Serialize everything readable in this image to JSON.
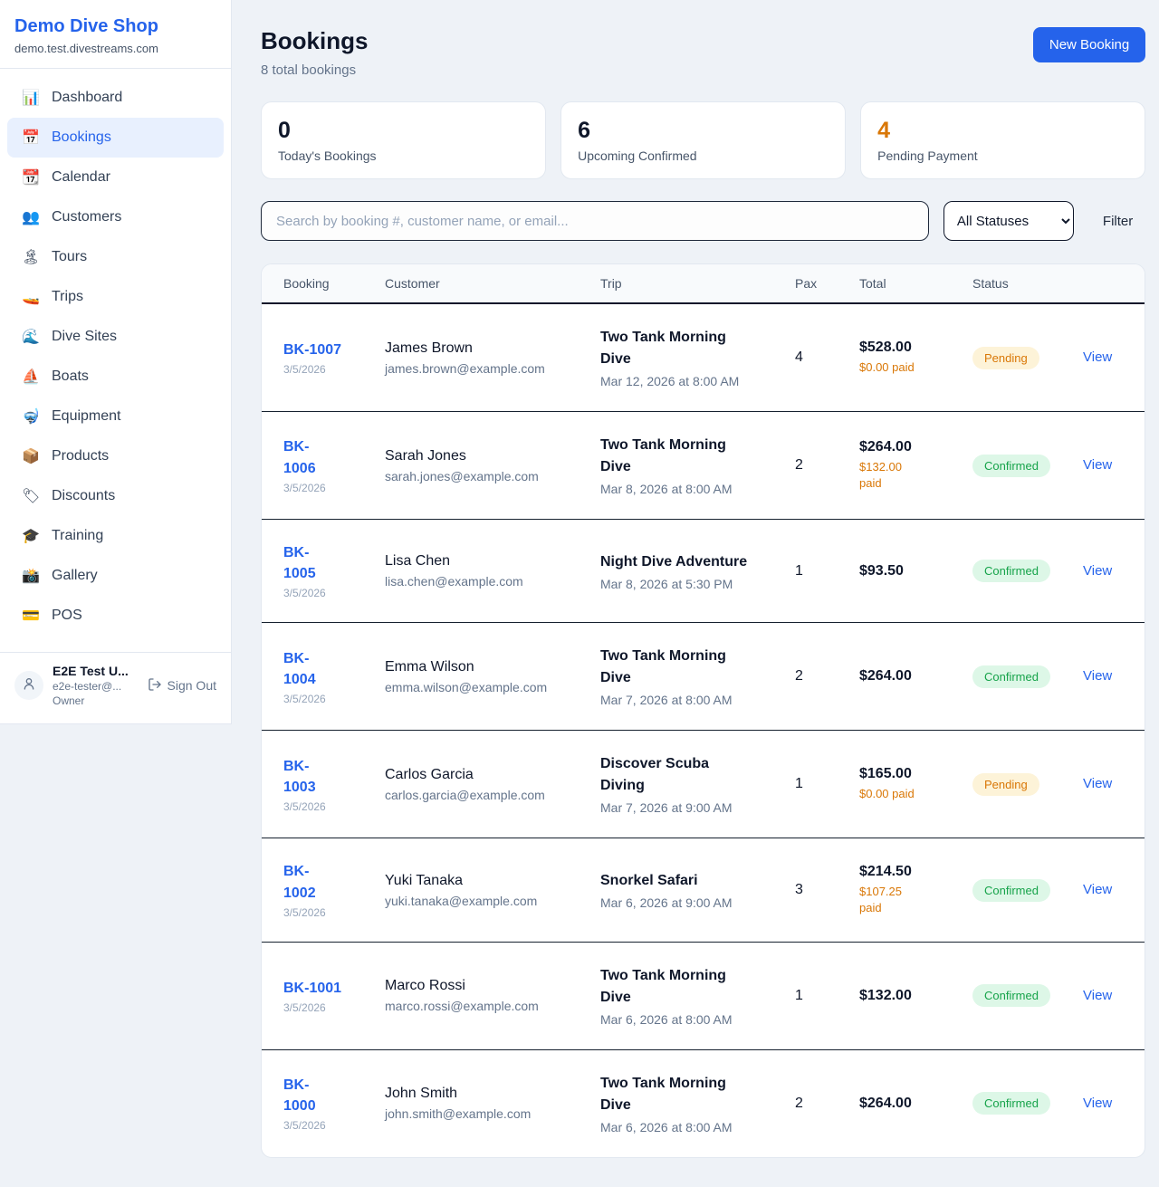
{
  "colors": {
    "brand_blue": "#2563eb",
    "pending_orange": "#d97706",
    "confirmed_green": "#16a34a",
    "active_nav_bg": "#e8f0fe"
  },
  "sidebar": {
    "brand": {
      "name": "Demo Dive Shop",
      "domain": "demo.test.divestreams.com"
    },
    "nav": [
      {
        "icon": "dashboard",
        "glyph": "📊",
        "label": "Dashboard",
        "active": false
      },
      {
        "icon": "bookings",
        "glyph": "📅",
        "label": "Bookings",
        "active": true
      },
      {
        "icon": "calendar",
        "glyph": "📆",
        "label": "Calendar",
        "active": false
      },
      {
        "icon": "customers",
        "glyph": "👥",
        "label": "Customers",
        "active": false
      },
      {
        "icon": "tours",
        "glyph": "🏝",
        "label": "Tours",
        "active": false
      },
      {
        "icon": "trips",
        "glyph": "🚤",
        "label": "Trips",
        "active": false
      },
      {
        "icon": "dive-sites",
        "glyph": "🌊",
        "label": "Dive Sites",
        "active": false
      },
      {
        "icon": "boats",
        "glyph": "⛵",
        "label": "Boats",
        "active": false
      },
      {
        "icon": "equipment",
        "glyph": "🤿",
        "label": "Equipment",
        "active": false
      },
      {
        "icon": "products",
        "glyph": "📦",
        "label": "Products",
        "active": false
      },
      {
        "icon": "discounts",
        "glyph": "🏷",
        "label": "Discounts",
        "active": false
      },
      {
        "icon": "training",
        "glyph": "🎓",
        "label": "Training",
        "active": false
      },
      {
        "icon": "gallery",
        "glyph": "📸",
        "label": "Gallery",
        "active": false
      },
      {
        "icon": "pos",
        "glyph": "💳",
        "label": "POS",
        "active": false
      }
    ],
    "user": {
      "name": "E2E Test U...",
      "email": "e2e-tester@...",
      "role": "Owner",
      "sign_out": "Sign Out"
    }
  },
  "header": {
    "title": "Bookings",
    "subtitle": "8 total bookings",
    "new_booking_label": "New Booking"
  },
  "stats": [
    {
      "value": "0",
      "label": "Today's Bookings"
    },
    {
      "value": "6",
      "label": "Upcoming Confirmed"
    },
    {
      "value": "4",
      "label": "Pending Payment"
    }
  ],
  "filters": {
    "search_placeholder": "Search by booking #, customer name, or email...",
    "status_select": "All Statuses",
    "filter_label": "Filter"
  },
  "table": {
    "columns": [
      "Booking",
      "Customer",
      "Trip",
      "Pax",
      "Total",
      "Status"
    ],
    "view_label": "View",
    "rows": [
      {
        "id": "BK-1007",
        "date": "3/5/2026",
        "customer": "James Brown",
        "email": "james.brown@example.com",
        "trip": "Two Tank Morning Dive",
        "trip_time": "Mar 12, 2026 at 8:00 AM",
        "pax": "4",
        "total": "$528.00",
        "paid": "$0.00 paid",
        "status": "Pending"
      },
      {
        "id": "BK-\n1006",
        "date": "3/5/2026",
        "customer": "Sarah Jones",
        "email": "sarah.jones@example.com",
        "trip": "Two Tank Morning Dive",
        "trip_time": "Mar 8, 2026 at 8:00 AM",
        "pax": "2",
        "total": "$264.00",
        "paid": "$132.00\npaid",
        "status": "Confirmed"
      },
      {
        "id": "BK-\n1005",
        "date": "3/5/2026",
        "customer": "Lisa Chen",
        "email": "lisa.chen@example.com",
        "trip": "Night Dive Adventure",
        "trip_time": "Mar 8, 2026 at 5:30 PM",
        "pax": "1",
        "total": "$93.50",
        "paid": "",
        "status": "Confirmed"
      },
      {
        "id": "BK-\n1004",
        "date": "3/5/2026",
        "customer": "Emma Wilson",
        "email": "emma.wilson@example.com",
        "trip": "Two Tank Morning Dive",
        "trip_time": "Mar 7, 2026 at 8:00 AM",
        "pax": "2",
        "total": "$264.00",
        "paid": "",
        "status": "Confirmed"
      },
      {
        "id": "BK-\n1003",
        "date": "3/5/2026",
        "customer": "Carlos Garcia",
        "email": "carlos.garcia@example.com",
        "trip": "Discover Scuba Diving",
        "trip_time": "Mar 7, 2026 at 9:00 AM",
        "pax": "1",
        "total": "$165.00",
        "paid": "$0.00 paid",
        "status": "Pending"
      },
      {
        "id": "BK-\n1002",
        "date": "3/5/2026",
        "customer": "Yuki Tanaka",
        "email": "yuki.tanaka@example.com",
        "trip": "Snorkel Safari",
        "trip_time": "Mar 6, 2026 at 9:00 AM",
        "pax": "3",
        "total": "$214.50",
        "paid": "$107.25 paid",
        "status": "Confirmed"
      },
      {
        "id": "BK-1001",
        "date": "3/5/2026",
        "customer": "Marco Rossi",
        "email": "marco.rossi@example.com",
        "trip": "Two Tank Morning Dive",
        "trip_time": "Mar 6, 2026 at 8:00 AM",
        "pax": "1",
        "total": "$132.00",
        "paid": "",
        "status": "Confirmed"
      },
      {
        "id": "BK-\n1000",
        "date": "3/5/2026",
        "customer": "John Smith",
        "email": "john.smith@example.com",
        "trip": "Two Tank Morning Dive",
        "trip_time": "Mar 6, 2026 at 8:00 AM",
        "pax": "2",
        "total": "$264.00",
        "paid": "",
        "status": "Confirmed"
      }
    ]
  }
}
